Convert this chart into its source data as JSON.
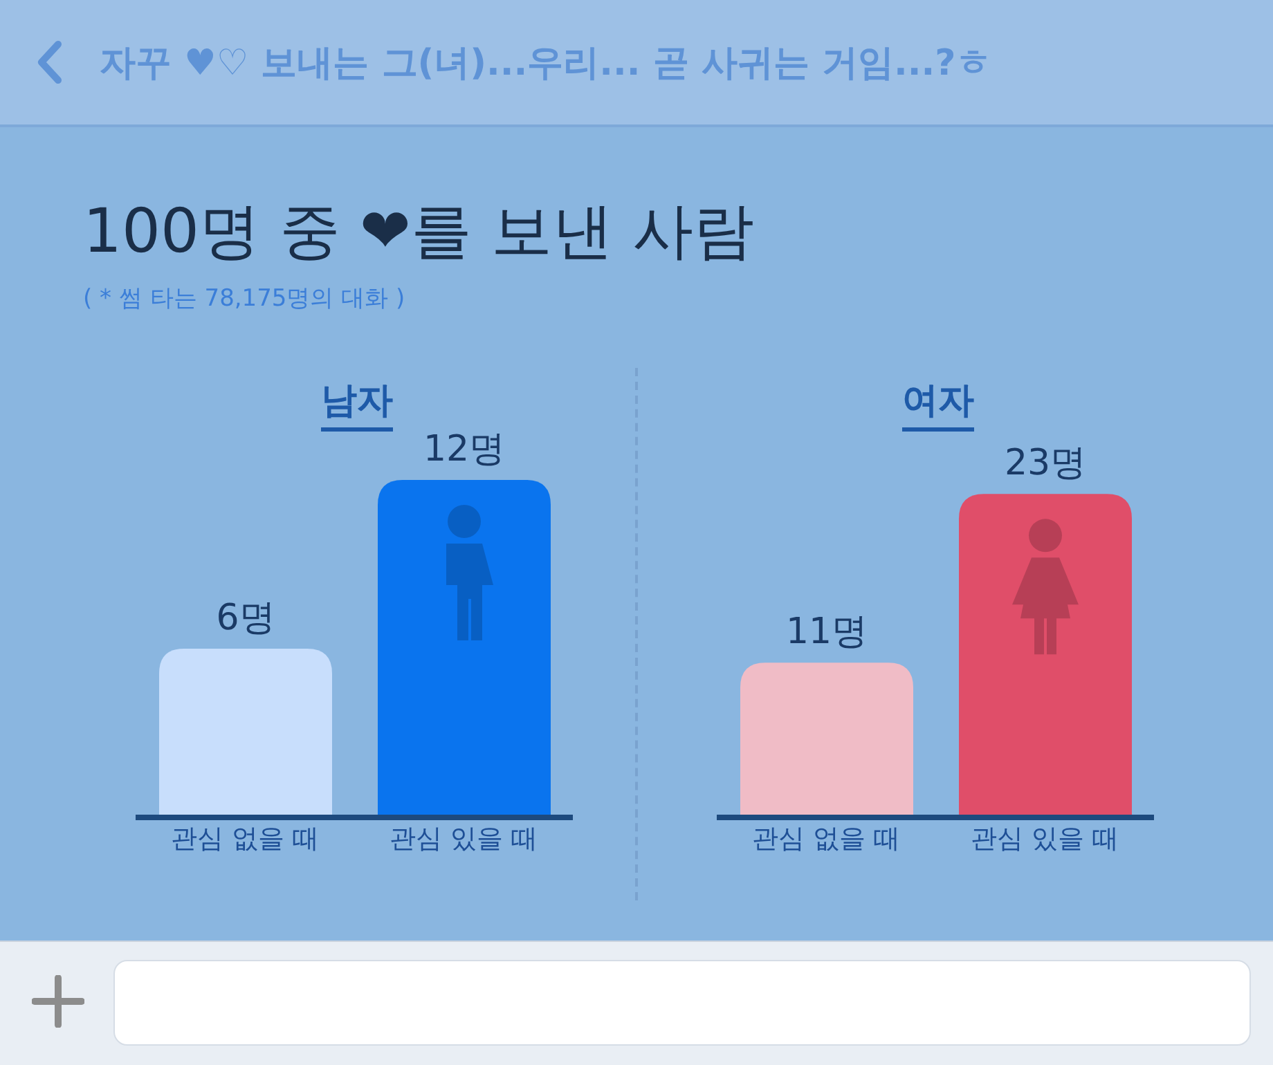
{
  "chart_data": [
    {
      "type": "other",
      "title": "100명 중 ❤를 보낸 사람",
      "subtitle": "( * 썸 타는 78,175명의 대화 )",
      "annotations": [
        "자꾸 ♥♡ 보내는 그(녀)...우리... 곧 사귀는 거임...?ㅎ"
      ]
    },
    {
      "type": "bar",
      "title": "남자",
      "categories": [
        "관심 없을 때",
        "관심 있을 때"
      ],
      "values": [
        6,
        12
      ],
      "colors": [
        "#c8defc",
        "#0a74ee"
      ],
      "value_labels": [
        "6명",
        "12명"
      ],
      "tick_labels": "x"
    },
    {
      "type": "bar",
      "title": "여자",
      "categories": [
        "관심 없을 때",
        "관심 있을 때"
      ],
      "values": [
        11,
        23
      ],
      "colors": [
        "#f0bcc6",
        "#e04e69"
      ],
      "value_labels": [
        "11명",
        "23명"
      ],
      "tick_labels": "x"
    }
  ]
}
